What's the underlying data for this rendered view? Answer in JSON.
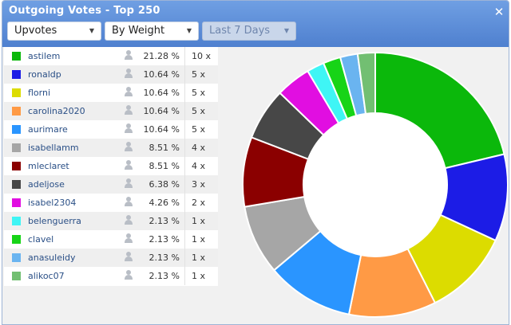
{
  "window": {
    "title": "Outgoing Votes - Top 250"
  },
  "controls": {
    "vote_type": "Upvotes",
    "sort": "By Weight",
    "period": "Last 7 Days"
  },
  "votes": [
    {
      "user": "astilem",
      "pct": "21.28 %",
      "count": "10 x",
      "color": "#0bb80b"
    },
    {
      "user": "ronaldp",
      "pct": "10.64 %",
      "count": "5 x",
      "color": "#1c1ce6"
    },
    {
      "user": "florni",
      "pct": "10.64 %",
      "count": "5 x",
      "color": "#dcdc00"
    },
    {
      "user": "carolina2020",
      "pct": "10.64 %",
      "count": "5 x",
      "color": "#ff9a45"
    },
    {
      "user": "aurimare",
      "pct": "10.64 %",
      "count": "5 x",
      "color": "#2a95ff"
    },
    {
      "user": "isabellamm",
      "pct": "8.51 %",
      "count": "4 x",
      "color": "#a6a6a6"
    },
    {
      "user": "mleclaret",
      "pct": "8.51 %",
      "count": "4 x",
      "color": "#8b0000"
    },
    {
      "user": "adeljose",
      "pct": "6.38 %",
      "count": "3 x",
      "color": "#474747"
    },
    {
      "user": "isabel2304",
      "pct": "4.26 %",
      "count": "2 x",
      "color": "#e10ee1"
    },
    {
      "user": "belenguerra",
      "pct": "2.13 %",
      "count": "1 x",
      "color": "#3ff5f5"
    },
    {
      "user": "clavel",
      "pct": "2.13 %",
      "count": "1 x",
      "color": "#17d417"
    },
    {
      "user": "anasuleidy",
      "pct": "2.13 %",
      "count": "1 x",
      "color": "#6ab4f0"
    },
    {
      "user": "alikoc07",
      "pct": "2.13 %",
      "count": "1 x",
      "color": "#72bf72"
    }
  ],
  "chart_data": {
    "type": "pie",
    "variant": "donut",
    "categories": [
      "astilem",
      "ronaldp",
      "florni",
      "carolina2020",
      "aurimare",
      "isabellamm",
      "mleclaret",
      "adeljose",
      "isabel2304",
      "belenguerra",
      "clavel",
      "anasuleidy",
      "alikoc07"
    ],
    "values": [
      21.28,
      10.64,
      10.64,
      10.64,
      10.64,
      8.51,
      8.51,
      6.38,
      4.26,
      2.13,
      2.13,
      2.13,
      2.13
    ],
    "colors": [
      "#0bb80b",
      "#1c1ce6",
      "#dcdc00",
      "#ff9a45",
      "#2a95ff",
      "#a6a6a6",
      "#8b0000",
      "#474747",
      "#e10ee1",
      "#3ff5f5",
      "#17d417",
      "#6ab4f0",
      "#72bf72"
    ],
    "start": "top",
    "direction": "clockwise"
  }
}
